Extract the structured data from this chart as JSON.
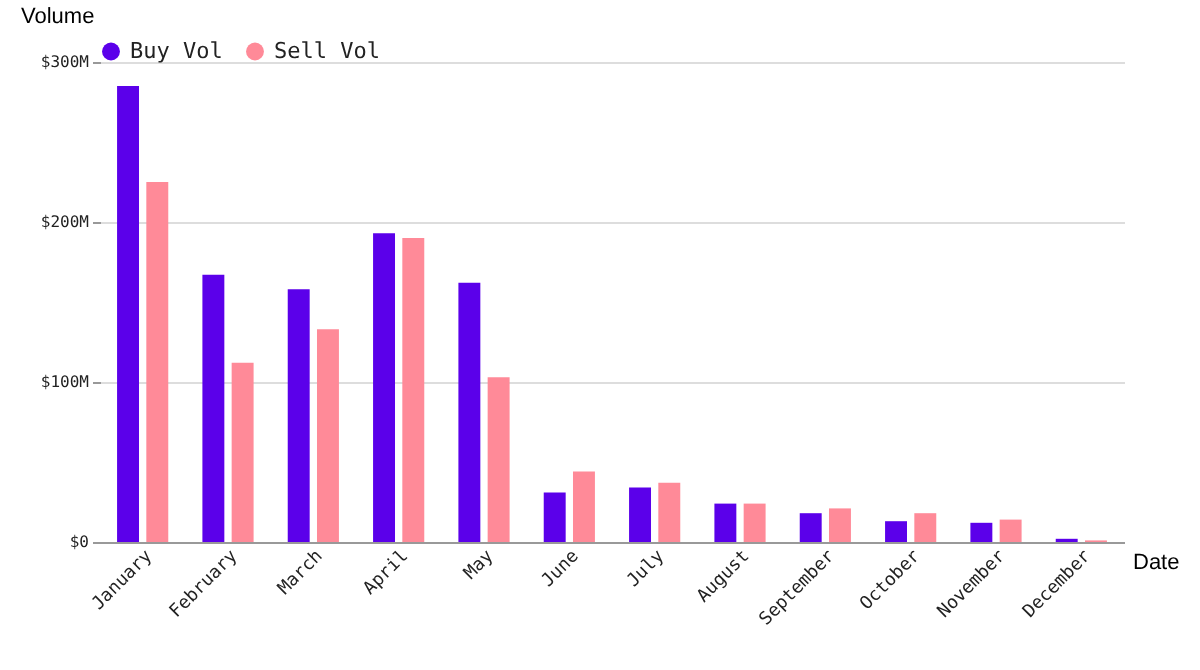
{
  "chart_data": {
    "type": "bar",
    "xlabel": "Date",
    "ylabel": "Volume",
    "categories": [
      "January",
      "February",
      "March",
      "April",
      "May",
      "June",
      "July",
      "August",
      "September",
      "October",
      "November",
      "December"
    ],
    "series": [
      {
        "name": "Buy Vol",
        "color": "#5b00ea",
        "values": [
          285,
          167,
          158,
          193,
          162,
          31,
          34,
          24,
          18,
          13,
          12,
          2
        ]
      },
      {
        "name": "Sell Vol",
        "color": "#ff8a98",
        "values": [
          225,
          112,
          133,
          190,
          103,
          44,
          37,
          24,
          21,
          18,
          14,
          1
        ]
      }
    ],
    "ylim": [
      0,
      300
    ],
    "yticks": [
      {
        "value": 0,
        "label": "$0"
      },
      {
        "value": 100,
        "label": "$100M"
      },
      {
        "value": 200,
        "label": "$200M"
      },
      {
        "value": 300,
        "label": "$300M"
      }
    ],
    "grid": "y",
    "legend": "top"
  }
}
